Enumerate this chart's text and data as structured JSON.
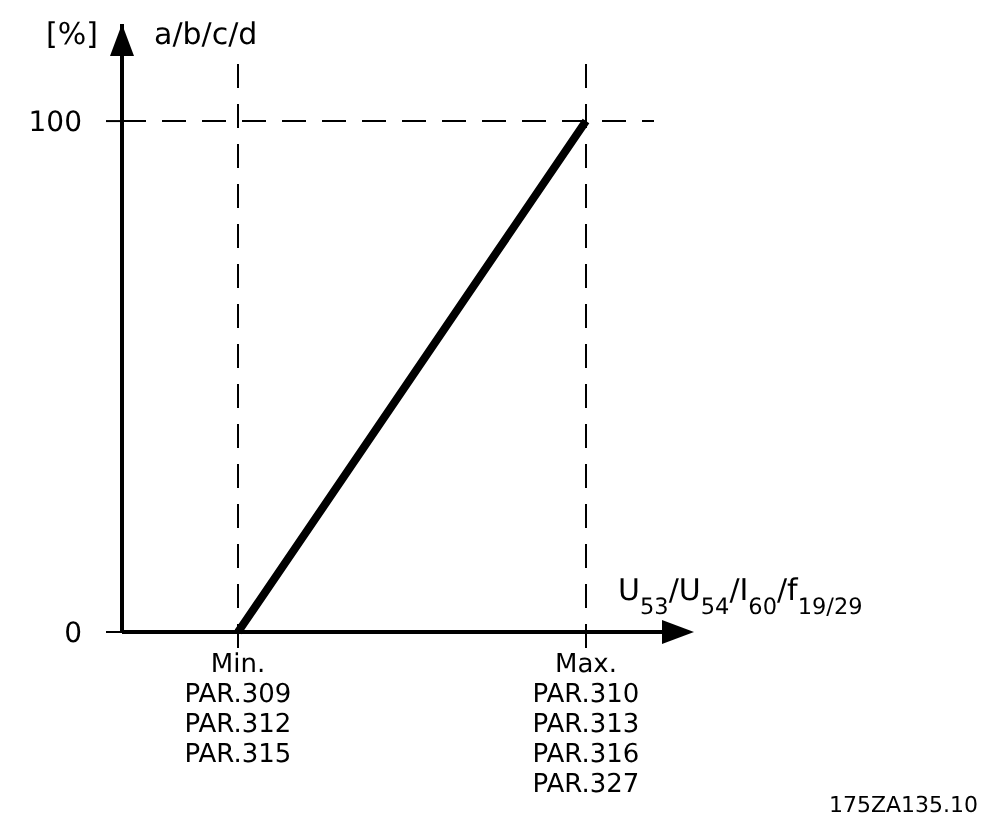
{
  "chart_data": {
    "type": "line",
    "title": "a/b/c/d",
    "ylabel": "[%]",
    "xlabel": "U$_{53}$/U$_{54}$/I$_{60}$/f$_{19/29}$",
    "ylim": [
      0,
      119
    ],
    "categories": [
      null,
      "Min.\nPAR.309\nPAR.312\nPAR.315",
      null,
      null,
      "Max.\nPAR.310\nPAR.313\nPAR.316\nPAR.327",
      null
    ],
    "yticks": [
      0,
      100
    ],
    "series": [
      {
        "color": "#000000",
        "values": [
          null,
          0,
          33.3,
          66.7,
          100,
          null
        ]
      }
    ],
    "marker": "none",
    "line_style": "solid",
    "grid": "x",
    "ref_lines": [
      {
        "axis": "y",
        "value": 100,
        "line_style": "dashed",
        "color": "#000000"
      }
    ],
    "annotations": [
      "175ZA135.10"
    ]
  }
}
